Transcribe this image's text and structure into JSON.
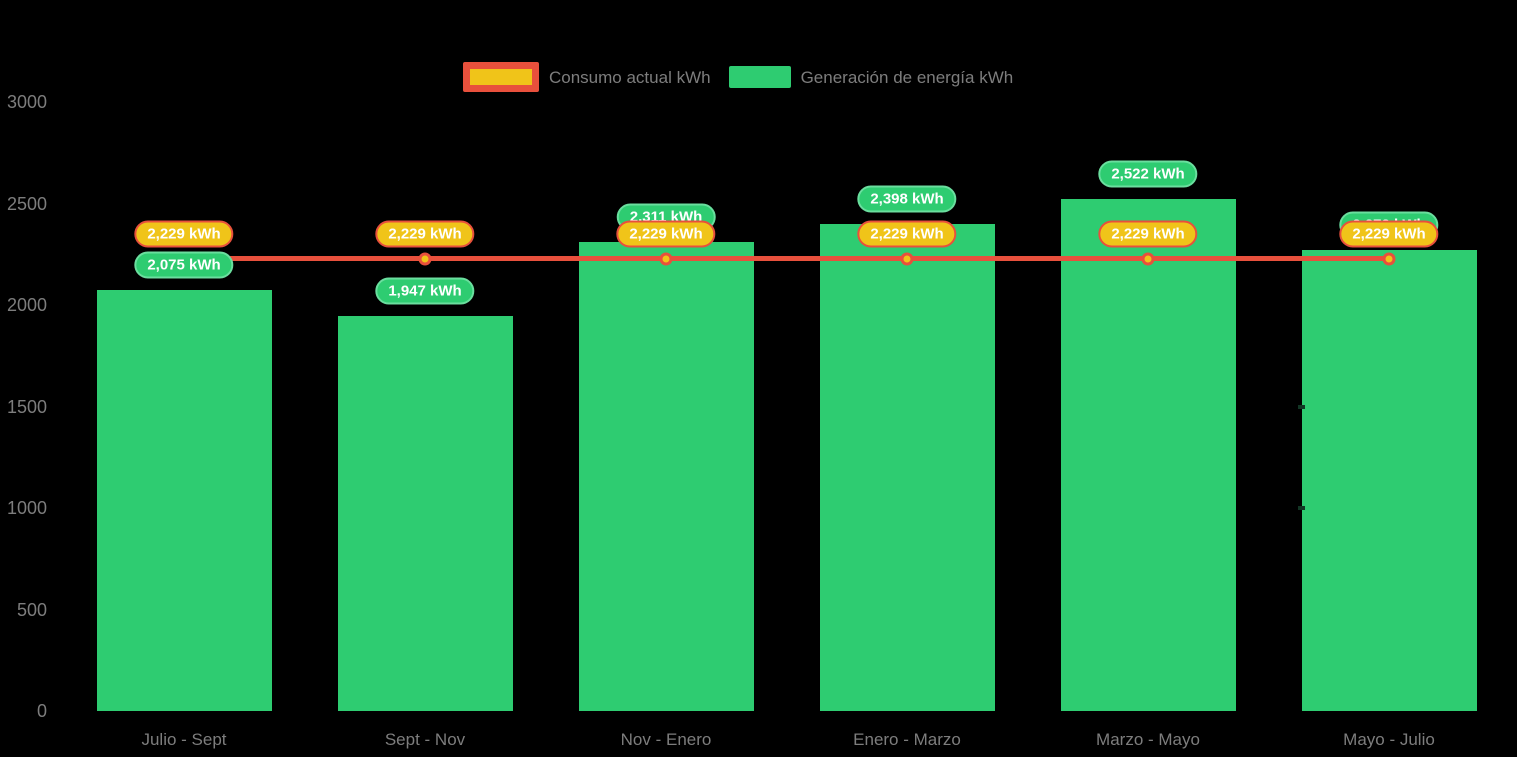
{
  "legend": {
    "items": [
      {
        "label": "Consumo actual kWh"
      },
      {
        "label": "Generación de energía kWh"
      }
    ]
  },
  "colors": {
    "background": "#000000",
    "bar_green": "#2ecc71",
    "green_badge_border": "#6ade9e",
    "line_red": "#e8503c",
    "marker_gold": "#f0c419",
    "badge_gold": "#f0c419",
    "axis_text_gray": "#7d7d7d",
    "badge_text": "#ffffff"
  },
  "chart_data": {
    "type": "bar+line",
    "title": "",
    "xlabel": "",
    "ylabel": "",
    "categories": [
      "Julio - Sept",
      "Sept - Nov",
      "Nov - Enero",
      "Enero - Marzo",
      "Marzo - Mayo",
      "Mayo - Julio"
    ],
    "series": [
      {
        "name": "Generación de energía kWh",
        "type": "bar",
        "color": "#2ecc71",
        "values": [
          2075,
          1947,
          2311,
          2398,
          2522,
          2272
        ],
        "labels": [
          "2,075 kWh",
          "1,947 kWh",
          "2,311 kWh",
          "2,398 kWh",
          "2,522 kWh",
          "2,272 kWh"
        ]
      },
      {
        "name": "Consumo actual kWh",
        "type": "line",
        "color": "#e8503c",
        "marker_color": "#f0c419",
        "values": [
          2229,
          2229,
          2229,
          2229,
          2229,
          2229
        ],
        "labels": [
          "2,229 kWh",
          "2,229 kWh",
          "2,229 kWh",
          "2,229 kWh",
          "2,229 kWh",
          "2,229 kWh"
        ]
      }
    ],
    "ylim": [
      0,
      3000
    ],
    "yticks": [
      0,
      500,
      1000,
      1500,
      2000,
      2500,
      3000
    ],
    "grid": false,
    "legend_position": "top-center"
  }
}
